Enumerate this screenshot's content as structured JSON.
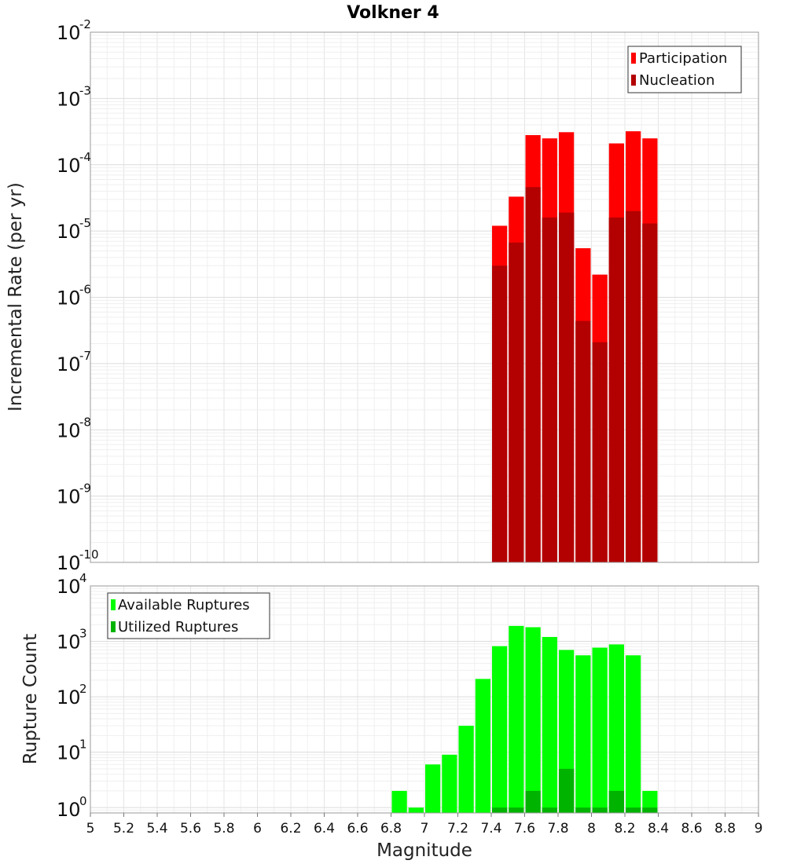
{
  "chart_data": [
    {
      "type": "bar",
      "title": "Volkner 4",
      "xlabel": "",
      "ylabel": "Incremental Rate (per yr)",
      "yscale": "log",
      "ylim": [
        1e-10,
        0.01
      ],
      "xlim": [
        5,
        9
      ],
      "bin_width": 0.1,
      "grid": true,
      "legend_position": "top-right",
      "x": [
        7.45,
        7.55,
        7.65,
        7.75,
        7.85,
        7.95,
        8.05,
        8.15,
        8.25,
        8.35
      ],
      "series": [
        {
          "name": "Participation",
          "color": "#ff0000",
          "values": [
            1.2e-05,
            3.3e-05,
            0.00028,
            0.00025,
            0.00031,
            5.5e-06,
            2.2e-06,
            0.00021,
            0.00032,
            0.00025
          ]
        },
        {
          "name": "Nucleation",
          "color": "#b30000",
          "values": [
            3e-06,
            6.7e-06,
            4.6e-05,
            1.6e-05,
            1.9e-05,
            4.4e-07,
            2.1e-07,
            1.6e-05,
            2e-05,
            1.3e-05
          ]
        }
      ],
      "yticks": [
        {
          "base": "10",
          "exp": "-10"
        },
        {
          "base": "10",
          "exp": "-9"
        },
        {
          "base": "10",
          "exp": "-8"
        },
        {
          "base": "10",
          "exp": "-7"
        },
        {
          "base": "10",
          "exp": "-6"
        },
        {
          "base": "10",
          "exp": "-5"
        },
        {
          "base": "10",
          "exp": "-4"
        },
        {
          "base": "10",
          "exp": "-3"
        },
        {
          "base": "10",
          "exp": "-2"
        }
      ]
    },
    {
      "type": "bar",
      "title": "",
      "xlabel": "Magnitude",
      "ylabel": "Rupture Count",
      "yscale": "log",
      "ylim": [
        0.8,
        10000
      ],
      "xlim": [
        5,
        9
      ],
      "bin_width": 0.1,
      "grid": true,
      "legend_position": "top-left",
      "x": [
        6.85,
        6.95,
        7.05,
        7.15,
        7.25,
        7.35,
        7.45,
        7.55,
        7.65,
        7.75,
        7.85,
        7.95,
        8.05,
        8.15,
        8.25,
        8.35
      ],
      "series": [
        {
          "name": "Available Ruptures",
          "color": "#00ff00",
          "values": [
            2,
            1,
            6,
            9,
            30,
            210,
            820,
            1900,
            1800,
            1200,
            700,
            560,
            770,
            880,
            560,
            2
          ]
        },
        {
          "name": "Utilized Ruptures",
          "color": "#00b300",
          "values": [
            0,
            0,
            0,
            0,
            0,
            0,
            1,
            1,
            2,
            1,
            5,
            1,
            1,
            2,
            1,
            1
          ]
        }
      ],
      "yticks": [
        {
          "base": "10",
          "exp": "0"
        },
        {
          "base": "10",
          "exp": "1"
        },
        {
          "base": "10",
          "exp": "2"
        },
        {
          "base": "10",
          "exp": "3"
        },
        {
          "base": "10",
          "exp": "4"
        }
      ],
      "xticks": [
        "5",
        "5.2",
        "5.4",
        "5.6",
        "5.8",
        "6",
        "6.2",
        "6.4",
        "6.6",
        "6.8",
        "7",
        "7.2",
        "7.4",
        "7.6",
        "7.8",
        "8",
        "8.2",
        "8.4",
        "8.6",
        "8.8",
        "9"
      ]
    }
  ]
}
